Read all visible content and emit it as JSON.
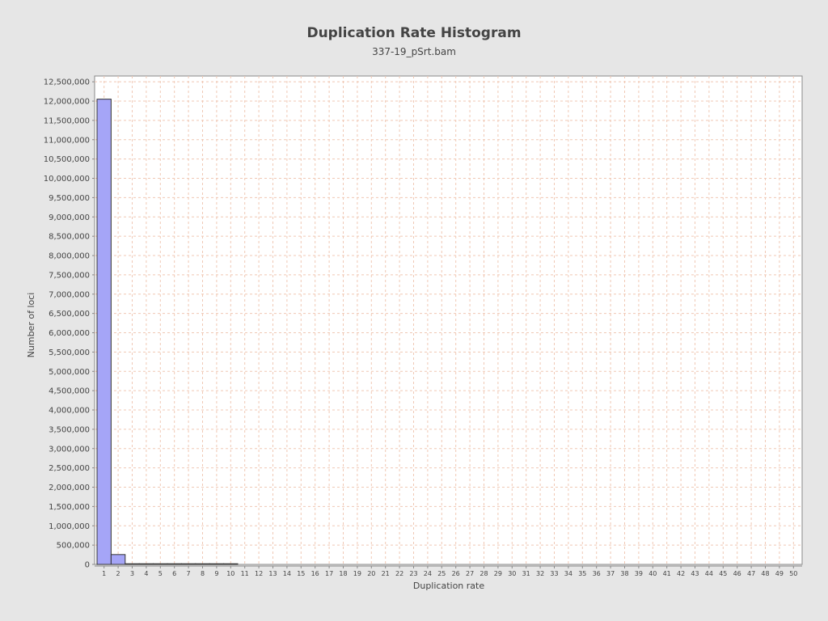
{
  "chart_data": {
    "type": "bar",
    "title": "Duplication Rate Histogram",
    "subtitle": "337-19_pSrt.bam",
    "xlabel": "Duplication rate",
    "ylabel": "Number of loci",
    "x_range": [
      1,
      50
    ],
    "ylim": [
      0,
      12650000
    ],
    "y_tick_step": 500000,
    "grid": true,
    "legend": "none",
    "bar_color": "#a5a5f7",
    "bar_edge_color": "#333333",
    "grid_color": "#f0c8b4",
    "categories": [
      1,
      2,
      3,
      4,
      5,
      6,
      7,
      8,
      9,
      10
    ],
    "values": [
      12050000,
      255000,
      14000,
      4500,
      2500,
      1600,
      1100,
      800,
      600,
      450
    ]
  }
}
